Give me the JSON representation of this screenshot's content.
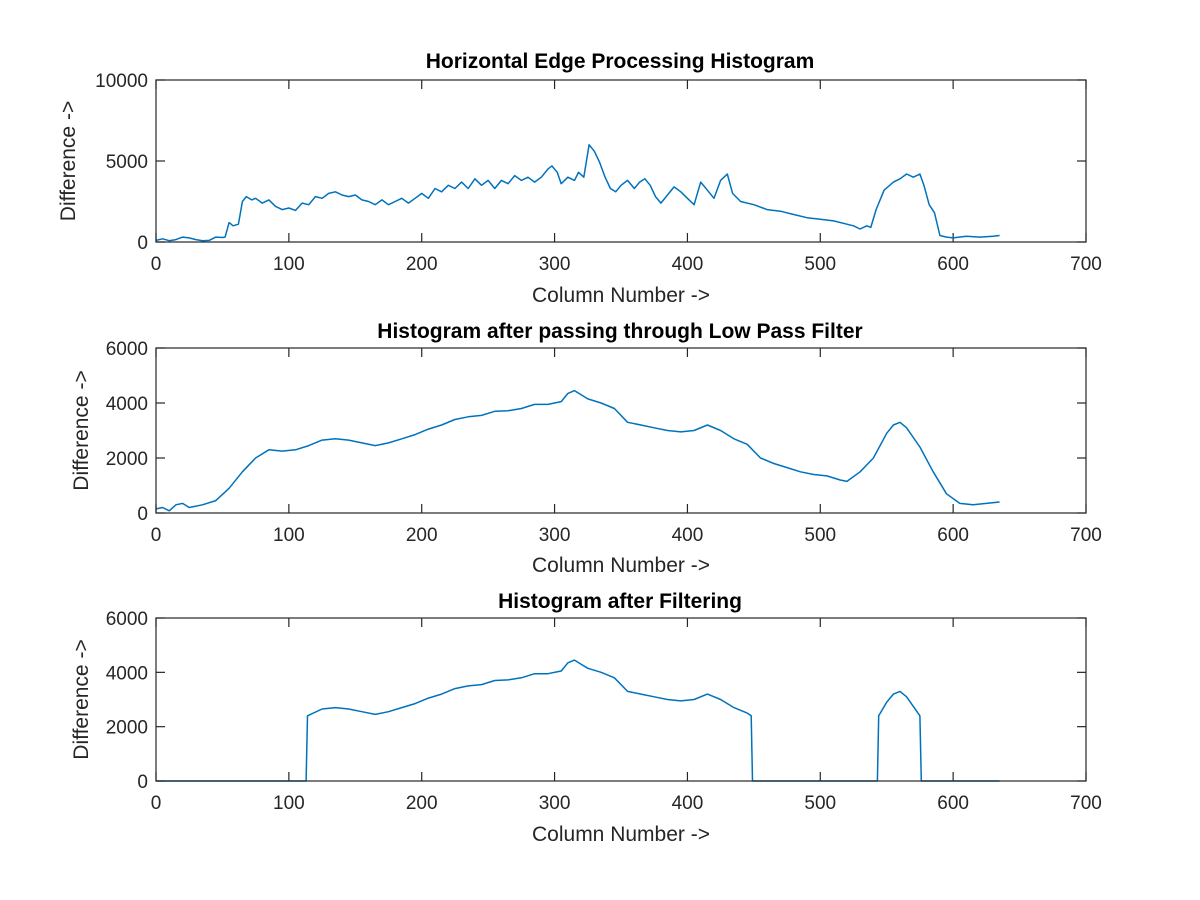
{
  "figure": {
    "background": "#ffffff",
    "axis_color": "#262626",
    "line_color": "#0072BD"
  },
  "chart_data": [
    {
      "type": "line",
      "title": "Horizontal Edge Processing Histogram",
      "xlabel": "Column Number ->",
      "ylabel": "Difference ->",
      "xlim": [
        0,
        700
      ],
      "ylim": [
        0,
        10000
      ],
      "xticks": [
        0,
        100,
        200,
        300,
        400,
        500,
        600,
        700
      ],
      "yticks": [
        0,
        5000,
        10000
      ],
      "grid": false,
      "series": [
        {
          "color": "#0072BD",
          "points": [
            [
              0,
              100
            ],
            [
              5,
              200
            ],
            [
              10,
              80
            ],
            [
              15,
              150
            ],
            [
              20,
              300
            ],
            [
              25,
              250
            ],
            [
              30,
              150
            ],
            [
              35,
              80
            ],
            [
              40,
              100
            ],
            [
              45,
              300
            ],
            [
              50,
              280
            ],
            [
              52,
              300
            ],
            [
              55,
              1200
            ],
            [
              58,
              1000
            ],
            [
              62,
              1100
            ],
            [
              65,
              2500
            ],
            [
              68,
              2800
            ],
            [
              72,
              2600
            ],
            [
              75,
              2700
            ],
            [
              80,
              2400
            ],
            [
              85,
              2600
            ],
            [
              90,
              2200
            ],
            [
              95,
              2000
            ],
            [
              100,
              2100
            ],
            [
              105,
              1950
            ],
            [
              110,
              2400
            ],
            [
              115,
              2300
            ],
            [
              120,
              2800
            ],
            [
              125,
              2700
            ],
            [
              130,
              3000
            ],
            [
              135,
              3100
            ],
            [
              140,
              2900
            ],
            [
              145,
              2800
            ],
            [
              150,
              2900
            ],
            [
              155,
              2600
            ],
            [
              160,
              2500
            ],
            [
              165,
              2300
            ],
            [
              170,
              2600
            ],
            [
              175,
              2300
            ],
            [
              180,
              2500
            ],
            [
              185,
              2700
            ],
            [
              190,
              2400
            ],
            [
              195,
              2700
            ],
            [
              200,
              3000
            ],
            [
              205,
              2700
            ],
            [
              210,
              3300
            ],
            [
              215,
              3100
            ],
            [
              220,
              3500
            ],
            [
              225,
              3300
            ],
            [
              230,
              3700
            ],
            [
              235,
              3300
            ],
            [
              240,
              3900
            ],
            [
              245,
              3500
            ],
            [
              250,
              3800
            ],
            [
              255,
              3300
            ],
            [
              260,
              3800
            ],
            [
              265,
              3600
            ],
            [
              270,
              4100
            ],
            [
              275,
              3800
            ],
            [
              280,
              4000
            ],
            [
              285,
              3700
            ],
            [
              290,
              4000
            ],
            [
              295,
              4500
            ],
            [
              298,
              4700
            ],
            [
              302,
              4300
            ],
            [
              305,
              3600
            ],
            [
              310,
              4000
            ],
            [
              315,
              3800
            ],
            [
              318,
              4300
            ],
            [
              322,
              4000
            ],
            [
              326,
              6000
            ],
            [
              330,
              5600
            ],
            [
              334,
              4900
            ],
            [
              338,
              4000
            ],
            [
              342,
              3300
            ],
            [
              346,
              3100
            ],
            [
              350,
              3500
            ],
            [
              355,
              3800
            ],
            [
              360,
              3300
            ],
            [
              364,
              3700
            ],
            [
              368,
              3900
            ],
            [
              372,
              3500
            ],
            [
              376,
              2800
            ],
            [
              380,
              2400
            ],
            [
              385,
              2900
            ],
            [
              390,
              3400
            ],
            [
              395,
              3100
            ],
            [
              400,
              2700
            ],
            [
              405,
              2300
            ],
            [
              410,
              3700
            ],
            [
              415,
              3200
            ],
            [
              420,
              2700
            ],
            [
              425,
              3800
            ],
            [
              430,
              4200
            ],
            [
              434,
              3000
            ],
            [
              440,
              2500
            ],
            [
              450,
              2300
            ],
            [
              460,
              2000
            ],
            [
              470,
              1900
            ],
            [
              480,
              1700
            ],
            [
              490,
              1500
            ],
            [
              500,
              1400
            ],
            [
              510,
              1300
            ],
            [
              520,
              1100
            ],
            [
              525,
              1000
            ],
            [
              530,
              800
            ],
            [
              535,
              1000
            ],
            [
              538,
              900
            ],
            [
              542,
              2000
            ],
            [
              548,
              3200
            ],
            [
              555,
              3700
            ],
            [
              560,
              3900
            ],
            [
              565,
              4200
            ],
            [
              570,
              4000
            ],
            [
              575,
              4200
            ],
            [
              578,
              3500
            ],
            [
              582,
              2300
            ],
            [
              586,
              1800
            ],
            [
              590,
              400
            ],
            [
              595,
              300
            ],
            [
              600,
              250
            ],
            [
              610,
              350
            ],
            [
              620,
              300
            ],
            [
              630,
              350
            ],
            [
              635,
              400
            ]
          ]
        }
      ]
    },
    {
      "type": "line",
      "title": "Histogram after passing through Low Pass Filter",
      "xlabel": "Column Number ->",
      "ylabel": "Difference ->",
      "xlim": [
        0,
        700
      ],
      "ylim": [
        0,
        6000
      ],
      "xticks": [
        0,
        100,
        200,
        300,
        400,
        500,
        600,
        700
      ],
      "yticks": [
        0,
        2000,
        4000,
        6000
      ],
      "grid": false,
      "series": [
        {
          "color": "#0072BD",
          "points": [
            [
              0,
              150
            ],
            [
              5,
              200
            ],
            [
              10,
              80
            ],
            [
              15,
              300
            ],
            [
              20,
              350
            ],
            [
              25,
              200
            ],
            [
              35,
              300
            ],
            [
              45,
              450
            ],
            [
              55,
              900
            ],
            [
              65,
              1500
            ],
            [
              75,
              2000
            ],
            [
              85,
              2300
            ],
            [
              95,
              2250
            ],
            [
              105,
              2300
            ],
            [
              115,
              2450
            ],
            [
              125,
              2650
            ],
            [
              135,
              2700
            ],
            [
              145,
              2650
            ],
            [
              155,
              2550
            ],
            [
              165,
              2450
            ],
            [
              175,
              2550
            ],
            [
              185,
              2700
            ],
            [
              195,
              2850
            ],
            [
              205,
              3050
            ],
            [
              215,
              3200
            ],
            [
              225,
              3400
            ],
            [
              235,
              3500
            ],
            [
              245,
              3550
            ],
            [
              255,
              3700
            ],
            [
              265,
              3720
            ],
            [
              275,
              3800
            ],
            [
              285,
              3950
            ],
            [
              295,
              3950
            ],
            [
              305,
              4050
            ],
            [
              310,
              4350
            ],
            [
              315,
              4450
            ],
            [
              320,
              4300
            ],
            [
              325,
              4150
            ],
            [
              335,
              4000
            ],
            [
              345,
              3800
            ],
            [
              355,
              3300
            ],
            [
              365,
              3200
            ],
            [
              375,
              3100
            ],
            [
              385,
              3000
            ],
            [
              395,
              2950
            ],
            [
              405,
              3000
            ],
            [
              415,
              3200
            ],
            [
              425,
              3000
            ],
            [
              435,
              2700
            ],
            [
              445,
              2500
            ],
            [
              455,
              2000
            ],
            [
              465,
              1800
            ],
            [
              475,
              1650
            ],
            [
              485,
              1500
            ],
            [
              495,
              1400
            ],
            [
              505,
              1350
            ],
            [
              515,
              1200
            ],
            [
              520,
              1150
            ],
            [
              530,
              1500
            ],
            [
              540,
              2000
            ],
            [
              550,
              2900
            ],
            [
              555,
              3200
            ],
            [
              560,
              3300
            ],
            [
              565,
              3100
            ],
            [
              575,
              2400
            ],
            [
              585,
              1500
            ],
            [
              595,
              700
            ],
            [
              605,
              350
            ],
            [
              615,
              300
            ],
            [
              625,
              350
            ],
            [
              635,
              400
            ]
          ]
        }
      ]
    },
    {
      "type": "line",
      "title": "Histogram after Filtering",
      "xlabel": "Column Number ->",
      "ylabel": "Difference ->",
      "xlim": [
        0,
        700
      ],
      "ylim": [
        0,
        6000
      ],
      "xticks": [
        0,
        100,
        200,
        300,
        400,
        500,
        600,
        700
      ],
      "yticks": [
        0,
        2000,
        4000,
        6000
      ],
      "grid": false,
      "series": [
        {
          "color": "#0072BD",
          "points": [
            [
              0,
              0
            ],
            [
              113,
              0
            ],
            [
              114,
              2400
            ],
            [
              125,
              2650
            ],
            [
              135,
              2700
            ],
            [
              145,
              2650
            ],
            [
              155,
              2550
            ],
            [
              165,
              2450
            ],
            [
              175,
              2550
            ],
            [
              185,
              2700
            ],
            [
              195,
              2850
            ],
            [
              205,
              3050
            ],
            [
              215,
              3200
            ],
            [
              225,
              3400
            ],
            [
              235,
              3500
            ],
            [
              245,
              3550
            ],
            [
              255,
              3700
            ],
            [
              265,
              3720
            ],
            [
              275,
              3800
            ],
            [
              285,
              3950
            ],
            [
              295,
              3950
            ],
            [
              305,
              4050
            ],
            [
              310,
              4350
            ],
            [
              315,
              4450
            ],
            [
              320,
              4300
            ],
            [
              325,
              4150
            ],
            [
              335,
              4000
            ],
            [
              345,
              3800
            ],
            [
              355,
              3300
            ],
            [
              365,
              3200
            ],
            [
              375,
              3100
            ],
            [
              385,
              3000
            ],
            [
              395,
              2950
            ],
            [
              405,
              3000
            ],
            [
              415,
              3200
            ],
            [
              425,
              3000
            ],
            [
              435,
              2700
            ],
            [
              445,
              2500
            ],
            [
              448,
              2400
            ],
            [
              449,
              0
            ],
            [
              543,
              0
            ],
            [
              544,
              2400
            ],
            [
              550,
              2900
            ],
            [
              555,
              3200
            ],
            [
              560,
              3300
            ],
            [
              565,
              3100
            ],
            [
              575,
              2400
            ],
            [
              576,
              0
            ],
            [
              635,
              0
            ]
          ]
        }
      ]
    }
  ]
}
